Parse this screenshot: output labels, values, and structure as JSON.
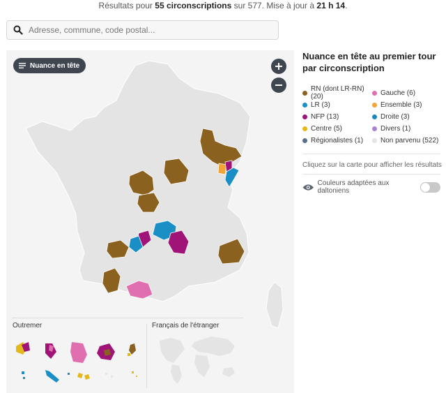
{
  "status": {
    "prefix": "Résultats pour",
    "count": "55 circonscriptions",
    "middle": "sur 577. Mise à jour à",
    "time": "21 h 14",
    "suffix": "."
  },
  "search": {
    "placeholder": "Adresse, commune, code postal..."
  },
  "map": {
    "nuance_button": "Nuance en tête",
    "zoom_in": "+",
    "zoom_out": "−",
    "outremer_label": "Outremer",
    "etranger_label": "Français de l'étranger"
  },
  "legend": {
    "title": "Nuance en tête au premier tour par circonscription",
    "items": [
      {
        "label": "RN (dont LR-RN) (20)",
        "color": "#8b6120"
      },
      {
        "label": "Gauche (6)",
        "color": "#e06fb0"
      },
      {
        "label": "LR (3)",
        "color": "#1a8fc6"
      },
      {
        "label": "Ensemble (3)",
        "color": "#f2a536"
      },
      {
        "label": "NFP (13)",
        "color": "#a01377"
      },
      {
        "label": "Droite (3)",
        "color": "#1f86b8"
      },
      {
        "label": "Centre (5)",
        "color": "#e3b81b"
      },
      {
        "label": "Divers (1)",
        "color": "#a885c9"
      },
      {
        "label": "Régionalistes (1)",
        "color": "#5a6f8c"
      },
      {
        "label": "Non parvenu (522)",
        "color": "#e4e4e4"
      }
    ],
    "hint": "Cliquez sur la carte pour afficher les résultats",
    "colorblind_label": "Couleurs adaptées aux daltoniens"
  },
  "colors": {
    "rn": "#8b6120",
    "gauche": "#e06fb0",
    "lr": "#1a8fc6",
    "ensemble": "#f2a536",
    "nfp": "#a01377",
    "centre": "#e3b81b",
    "land": "#e4e4e4",
    "button": "#3f4650"
  }
}
